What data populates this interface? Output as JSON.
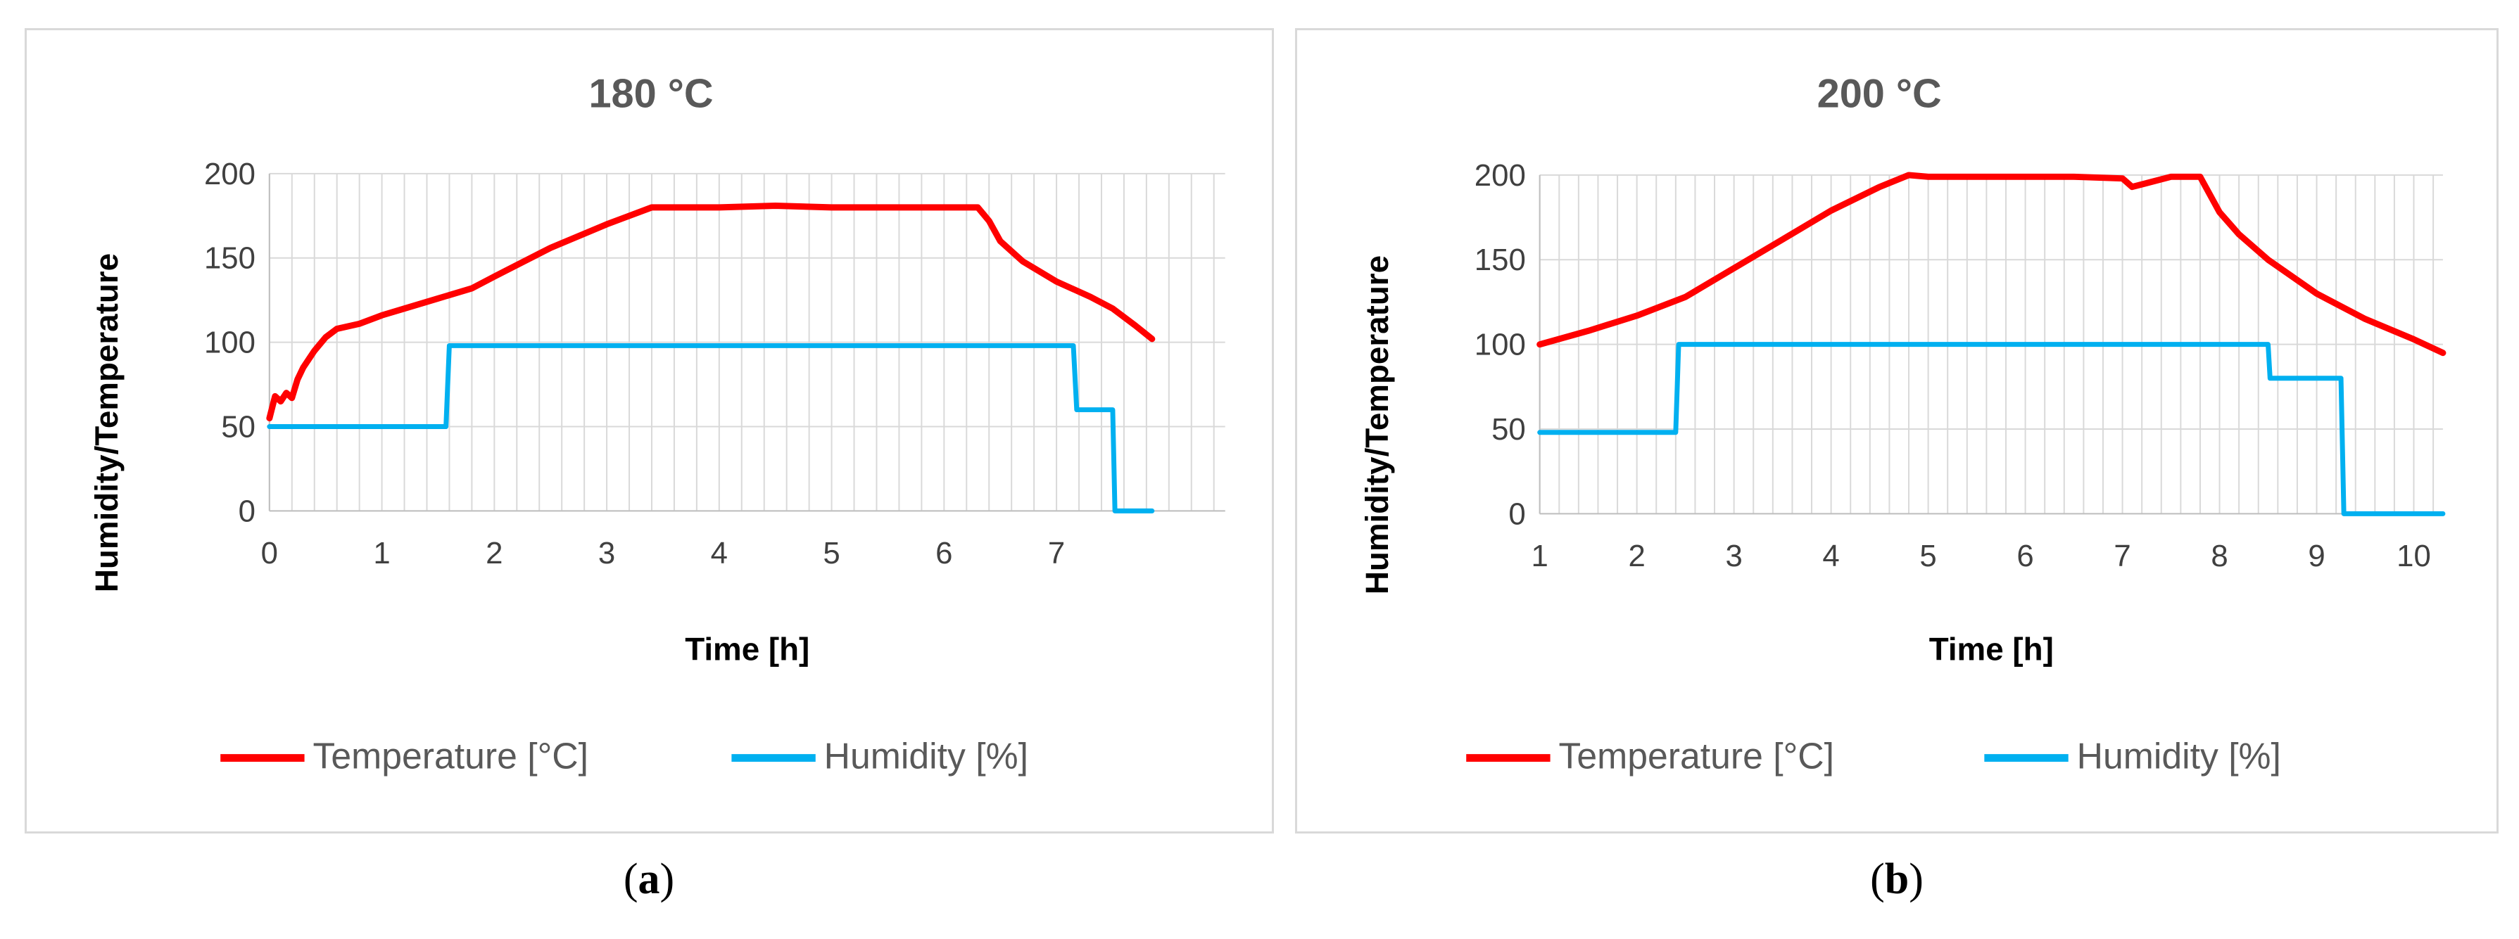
{
  "chart_data": [
    {
      "type": "line",
      "panel": "a",
      "title": "180 °C",
      "xlabel": "Time [h]",
      "ylabel": "Humidity/Temperature",
      "xlim": [
        0,
        8.5
      ],
      "ylim": [
        0,
        200
      ],
      "xticks": [
        0,
        1,
        2,
        3,
        4,
        5,
        6,
        7
      ],
      "yticks": [
        0,
        50,
        100,
        150,
        200
      ],
      "grid": true,
      "legend_position": "bottom",
      "series": [
        {
          "name": "Temperature [°C]",
          "color": "#ff0000",
          "x": [
            0,
            0.05,
            0.1,
            0.15,
            0.2,
            0.25,
            0.3,
            0.4,
            0.5,
            0.6,
            0.8,
            1.0,
            1.2,
            1.5,
            1.8,
            2.0,
            2.5,
            3.0,
            3.4,
            3.6,
            4.0,
            4.5,
            5.0,
            5.5,
            6.0,
            6.3,
            6.4,
            6.5,
            6.7,
            7.0,
            7.3,
            7.5,
            7.7,
            7.85
          ],
          "y": [
            55,
            68,
            65,
            70,
            67,
            78,
            85,
            95,
            103,
            108,
            111,
            116,
            120,
            126,
            132,
            139,
            156,
            170,
            180,
            180,
            180,
            181,
            180,
            180,
            180,
            180,
            172,
            160,
            148,
            136,
            127,
            120,
            110,
            102
          ]
        },
        {
          "name": "Humidity [%]",
          "color": "#00b0f0",
          "x": [
            0,
            1.57,
            1.6,
            7.15,
            7.18,
            7.5,
            7.52,
            7.85
          ],
          "y": [
            50,
            50,
            98,
            98,
            60,
            60,
            0,
            0
          ]
        }
      ]
    },
    {
      "type": "line",
      "panel": "b",
      "title": "200 °C",
      "xlabel": "Time [h]",
      "ylabel": "Humidity/Temperature",
      "xlim": [
        1,
        10.3
      ],
      "ylim": [
        0,
        200
      ],
      "xticks": [
        1,
        2,
        3,
        4,
        5,
        6,
        7,
        8,
        9,
        10
      ],
      "yticks": [
        0,
        50,
        100,
        150,
        200
      ],
      "grid": true,
      "legend_position": "bottom",
      "series": [
        {
          "name": "Temperature [°C]",
          "color": "#ff0000",
          "x": [
            1,
            1.5,
            2.0,
            2.5,
            3.0,
            3.5,
            4.0,
            4.5,
            4.8,
            5.0,
            5.5,
            6.0,
            6.5,
            7.0,
            7.1,
            7.5,
            7.8,
            8.0,
            8.2,
            8.5,
            9.0,
            9.5,
            10.0,
            10.3
          ],
          "y": [
            100,
            108,
            117,
            128,
            145,
            162,
            179,
            193,
            200,
            199,
            199,
            199,
            199,
            198,
            193,
            199,
            199,
            178,
            165,
            150,
            130,
            115,
            103,
            95
          ]
        },
        {
          "name": "Humidity [%]",
          "color": "#00b0f0",
          "x": [
            1,
            2.4,
            2.43,
            8.5,
            8.52,
            9.25,
            9.28,
            10.3
          ],
          "y": [
            48,
            48,
            100,
            100,
            80,
            80,
            0,
            0
          ]
        }
      ]
    }
  ],
  "captions": {
    "a_letter": "a",
    "b_letter": "b",
    "open_paren": "(",
    "close_paren": ")"
  }
}
